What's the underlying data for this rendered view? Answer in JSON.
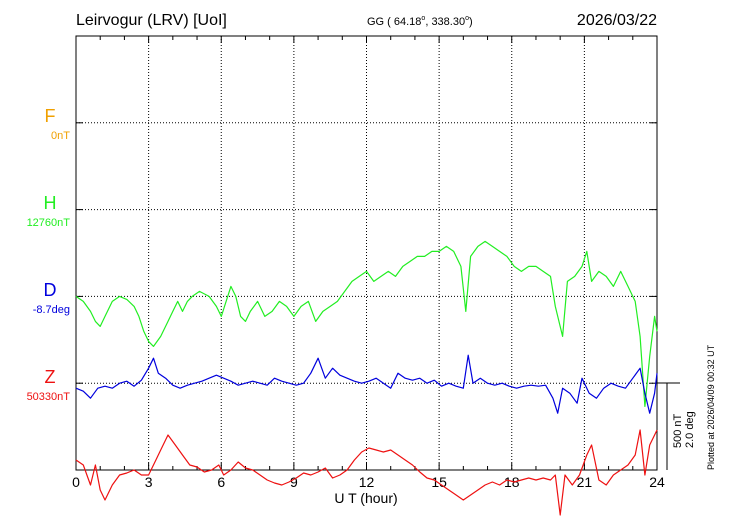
{
  "header": {
    "station": "Leirvogur (LRV)  [UoI]",
    "coords_prefix": "GG ( 64.18",
    "coords_mid": ", 338.30",
    "coords_suffix": ")",
    "degree_symbol": "o",
    "date": "2026/03/22"
  },
  "side_note": "Plotted at 2026/04/09 00:32 UT",
  "scale": {
    "line1": "500 nT",
    "line2": "2.0 deg"
  },
  "colors": {
    "F": "#f0a000",
    "H": "#22ee22",
    "D": "#0000dd",
    "Z": "#ee1111",
    "grid": "#000000"
  },
  "chart_data": {
    "type": "line",
    "xlabel": "U T (hour)",
    "x_ticks": [
      "0",
      "3",
      "6",
      "9",
      "12",
      "15",
      "18",
      "21",
      "24"
    ],
    "xlim": [
      0,
      24
    ],
    "grid": true,
    "series": [
      {
        "name": "F",
        "baseline": "0nT",
        "points": []
      },
      {
        "name": "H",
        "baseline": "12760nT",
        "points": [
          [
            0,
            0
          ],
          [
            0.3,
            -5
          ],
          [
            0.6,
            -15
          ],
          [
            0.8,
            -25
          ],
          [
            1.0,
            -30
          ],
          [
            1.2,
            -20
          ],
          [
            1.5,
            -5
          ],
          [
            1.8,
            0
          ],
          [
            2.1,
            -3
          ],
          [
            2.4,
            -10
          ],
          [
            2.6,
            -20
          ],
          [
            2.8,
            -35
          ],
          [
            3.0,
            -45
          ],
          [
            3.2,
            -50
          ],
          [
            3.5,
            -40
          ],
          [
            3.8,
            -25
          ],
          [
            4.0,
            -15
          ],
          [
            4.2,
            -5
          ],
          [
            4.4,
            -15
          ],
          [
            4.6,
            -5
          ],
          [
            4.8,
            0
          ],
          [
            5.1,
            5
          ],
          [
            5.5,
            0
          ],
          [
            5.8,
            -10
          ],
          [
            6.0,
            -20
          ],
          [
            6.2,
            -5
          ],
          [
            6.4,
            10
          ],
          [
            6.6,
            0
          ],
          [
            6.8,
            -20
          ],
          [
            7.0,
            -25
          ],
          [
            7.2,
            -15
          ],
          [
            7.5,
            -5
          ],
          [
            7.8,
            -20
          ],
          [
            8.1,
            -15
          ],
          [
            8.4,
            -5
          ],
          [
            8.7,
            -10
          ],
          [
            9.0,
            -20
          ],
          [
            9.3,
            -10
          ],
          [
            9.6,
            -5
          ],
          [
            9.9,
            -25
          ],
          [
            10.2,
            -15
          ],
          [
            10.5,
            -10
          ],
          [
            10.8,
            -5
          ],
          [
            11.1,
            5
          ],
          [
            11.4,
            15
          ],
          [
            11.7,
            20
          ],
          [
            12.0,
            25
          ],
          [
            12.3,
            15
          ],
          [
            12.6,
            20
          ],
          [
            12.9,
            25
          ],
          [
            13.2,
            20
          ],
          [
            13.5,
            30
          ],
          [
            13.8,
            35
          ],
          [
            14.1,
            40
          ],
          [
            14.4,
            40
          ],
          [
            14.7,
            45
          ],
          [
            15.0,
            45
          ],
          [
            15.3,
            50
          ],
          [
            15.6,
            45
          ],
          [
            15.9,
            30
          ],
          [
            16.1,
            -15
          ],
          [
            16.3,
            40
          ],
          [
            16.6,
            50
          ],
          [
            16.9,
            55
          ],
          [
            17.2,
            50
          ],
          [
            17.5,
            45
          ],
          [
            17.8,
            40
          ],
          [
            18.1,
            30
          ],
          [
            18.4,
            25
          ],
          [
            18.7,
            30
          ],
          [
            19.0,
            30
          ],
          [
            19.3,
            25
          ],
          [
            19.6,
            20
          ],
          [
            19.8,
            -10
          ],
          [
            20.1,
            -40
          ],
          [
            20.3,
            15
          ],
          [
            20.6,
            20
          ],
          [
            20.9,
            30
          ],
          [
            21.1,
            45
          ],
          [
            21.3,
            15
          ],
          [
            21.6,
            25
          ],
          [
            21.9,
            20
          ],
          [
            22.2,
            10
          ],
          [
            22.5,
            25
          ],
          [
            22.8,
            10
          ],
          [
            23.1,
            -5
          ],
          [
            23.3,
            -40
          ],
          [
            23.5,
            -110
          ],
          [
            23.7,
            -60
          ],
          [
            23.9,
            -20
          ],
          [
            24.0,
            -35
          ]
        ]
      },
      {
        "name": "D",
        "baseline": "-8.7deg",
        "points": [
          [
            0,
            -5
          ],
          [
            0.3,
            -8
          ],
          [
            0.6,
            -15
          ],
          [
            0.9,
            -5
          ],
          [
            1.2,
            -3
          ],
          [
            1.5,
            -5
          ],
          [
            1.8,
            0
          ],
          [
            2.1,
            2
          ],
          [
            2.4,
            -3
          ],
          [
            2.7,
            3
          ],
          [
            3.0,
            15
          ],
          [
            3.2,
            25
          ],
          [
            3.4,
            10
          ],
          [
            3.7,
            5
          ],
          [
            4.0,
            -2
          ],
          [
            4.3,
            -5
          ],
          [
            4.6,
            -2
          ],
          [
            4.9,
            0
          ],
          [
            5.2,
            2
          ],
          [
            5.5,
            5
          ],
          [
            5.8,
            8
          ],
          [
            6.1,
            5
          ],
          [
            6.4,
            2
          ],
          [
            6.7,
            -2
          ],
          [
            7.0,
            0
          ],
          [
            7.3,
            2
          ],
          [
            7.6,
            0
          ],
          [
            7.9,
            -2
          ],
          [
            8.2,
            5
          ],
          [
            8.5,
            2
          ],
          [
            8.8,
            0
          ],
          [
            9.1,
            -2
          ],
          [
            9.4,
            0
          ],
          [
            9.7,
            10
          ],
          [
            10.0,
            25
          ],
          [
            10.3,
            5
          ],
          [
            10.6,
            15
          ],
          [
            10.9,
            8
          ],
          [
            11.2,
            5
          ],
          [
            11.5,
            2
          ],
          [
            11.8,
            0
          ],
          [
            12.1,
            2
          ],
          [
            12.4,
            5
          ],
          [
            12.7,
            0
          ],
          [
            13.0,
            -5
          ],
          [
            13.3,
            10
          ],
          [
            13.6,
            5
          ],
          [
            13.9,
            3
          ],
          [
            14.2,
            5
          ],
          [
            14.5,
            0
          ],
          [
            14.8,
            3
          ],
          [
            15.1,
            -3
          ],
          [
            15.4,
            0
          ],
          [
            15.7,
            -3
          ],
          [
            16.0,
            -5
          ],
          [
            16.2,
            28
          ],
          [
            16.4,
            0
          ],
          [
            16.7,
            5
          ],
          [
            17.0,
            0
          ],
          [
            17.3,
            -2
          ],
          [
            17.6,
            0
          ],
          [
            17.9,
            -3
          ],
          [
            18.2,
            -5
          ],
          [
            18.5,
            -3
          ],
          [
            18.8,
            -2
          ],
          [
            19.1,
            -3
          ],
          [
            19.4,
            -2
          ],
          [
            19.7,
            -15
          ],
          [
            19.9,
            -30
          ],
          [
            20.1,
            -5
          ],
          [
            20.4,
            -10
          ],
          [
            20.7,
            -20
          ],
          [
            20.9,
            5
          ],
          [
            21.2,
            -10
          ],
          [
            21.5,
            -15
          ],
          [
            21.8,
            -5
          ],
          [
            22.1,
            0
          ],
          [
            22.4,
            -3
          ],
          [
            22.7,
            -5
          ],
          [
            23.0,
            5
          ],
          [
            23.3,
            15
          ],
          [
            23.5,
            -10
          ],
          [
            23.7,
            -30
          ],
          [
            23.9,
            -10
          ],
          [
            24.0,
            10
          ]
        ]
      },
      {
        "name": "Z",
        "baseline": "50330nT",
        "points": [
          [
            0,
            10
          ],
          [
            0.3,
            5
          ],
          [
            0.6,
            -15
          ],
          [
            0.8,
            5
          ],
          [
            1.0,
            -20
          ],
          [
            1.2,
            -30
          ],
          [
            1.5,
            -15
          ],
          [
            1.8,
            -5
          ],
          [
            2.1,
            -3
          ],
          [
            2.4,
            0
          ],
          [
            2.7,
            -5
          ],
          [
            3.0,
            -5
          ],
          [
            3.3,
            10
          ],
          [
            3.5,
            20
          ],
          [
            3.8,
            35
          ],
          [
            4.1,
            25
          ],
          [
            4.4,
            15
          ],
          [
            4.7,
            5
          ],
          [
            5.0,
            3
          ],
          [
            5.3,
            -2
          ],
          [
            5.6,
            0
          ],
          [
            5.9,
            5
          ],
          [
            6.1,
            -5
          ],
          [
            6.4,
            0
          ],
          [
            6.7,
            8
          ],
          [
            7.0,
            2
          ],
          [
            7.3,
            0
          ],
          [
            7.6,
            -5
          ],
          [
            7.9,
            -10
          ],
          [
            8.2,
            -13
          ],
          [
            8.5,
            -15
          ],
          [
            8.8,
            -12
          ],
          [
            9.1,
            -8
          ],
          [
            9.4,
            -3
          ],
          [
            9.7,
            -5
          ],
          [
            10.0,
            -2
          ],
          [
            10.3,
            2
          ],
          [
            10.6,
            -8
          ],
          [
            10.9,
            -5
          ],
          [
            11.2,
            0
          ],
          [
            11.5,
            10
          ],
          [
            11.8,
            18
          ],
          [
            12.1,
            22
          ],
          [
            12.4,
            20
          ],
          [
            12.7,
            18
          ],
          [
            13.0,
            20
          ],
          [
            13.3,
            15
          ],
          [
            13.6,
            10
          ],
          [
            13.9,
            5
          ],
          [
            14.2,
            -2
          ],
          [
            14.5,
            -8
          ],
          [
            14.8,
            -10
          ],
          [
            15.1,
            -15
          ],
          [
            15.4,
            -20
          ],
          [
            15.7,
            -25
          ],
          [
            16.0,
            -30
          ],
          [
            16.3,
            -25
          ],
          [
            16.6,
            -20
          ],
          [
            16.9,
            -15
          ],
          [
            17.2,
            -12
          ],
          [
            17.5,
            -15
          ],
          [
            17.8,
            -10
          ],
          [
            18.1,
            -12
          ],
          [
            18.4,
            -10
          ],
          [
            18.7,
            -8
          ],
          [
            19.0,
            -10
          ],
          [
            19.3,
            -8
          ],
          [
            19.6,
            -10
          ],
          [
            19.8,
            -5
          ],
          [
            20.0,
            -45
          ],
          [
            20.2,
            -5
          ],
          [
            20.5,
            -15
          ],
          [
            20.8,
            -5
          ],
          [
            21.1,
            15
          ],
          [
            21.3,
            25
          ],
          [
            21.6,
            -10
          ],
          [
            21.9,
            -15
          ],
          [
            22.2,
            -5
          ],
          [
            22.5,
            0
          ],
          [
            22.8,
            5
          ],
          [
            23.1,
            15
          ],
          [
            23.3,
            40
          ],
          [
            23.5,
            -5
          ],
          [
            23.7,
            25
          ],
          [
            23.9,
            35
          ],
          [
            24.0,
            40
          ]
        ]
      }
    ]
  }
}
